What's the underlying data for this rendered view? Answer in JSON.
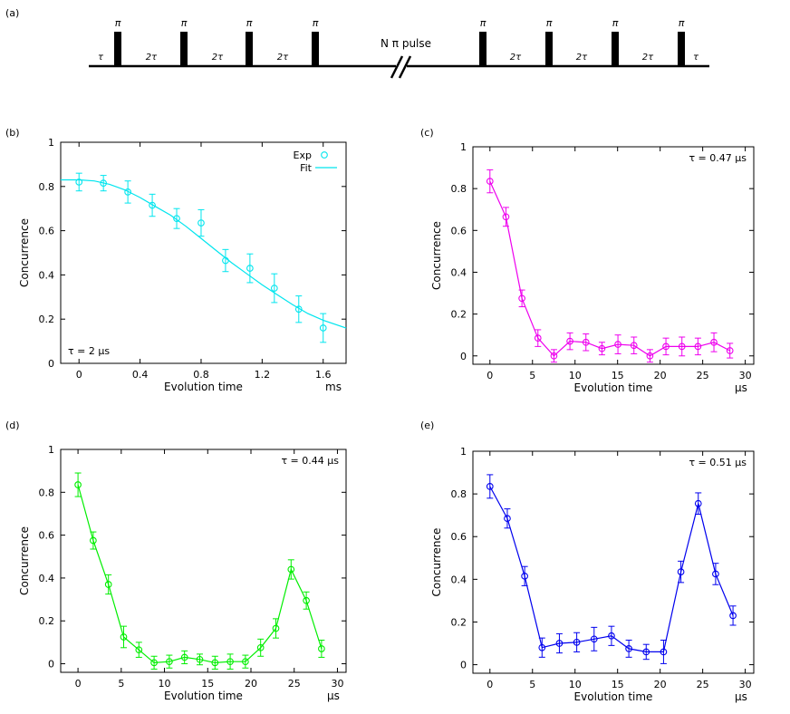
{
  "pulse_sequence": {
    "label": "(a)",
    "pi_label": "π",
    "tau_label": "τ",
    "two_tau_label": "2τ",
    "break_label": "N π pulse",
    "pulses_before_break": 4,
    "pulses_after_break": 4
  },
  "chart_data": [
    {
      "panel_label": "(b)",
      "type": "scatter",
      "series_type": "exp-with-fit",
      "color": "#00e5ee",
      "xlabel": "Evolution time",
      "xunit": "ms",
      "ylabel": "Concurrence",
      "xlim": [
        -0.12,
        1.75
      ],
      "ylim": [
        0,
        1
      ],
      "xticks": [
        0,
        0.4,
        0.8,
        1.2,
        1.6
      ],
      "xtick_labels": [
        "0",
        "0.4",
        "0.8",
        "1.2",
        "1.6"
      ],
      "yticks": [
        0,
        0.2,
        0.4,
        0.6,
        0.8,
        1
      ],
      "ytick_labels": [
        "0",
        "0.2",
        "0.4",
        "0.6",
        "0.8",
        "1"
      ],
      "annotation": "τ = 2 μs",
      "legend": [
        "Exp",
        "Fit"
      ],
      "legend_position": "top-right",
      "x": [
        0,
        0.16,
        0.32,
        0.48,
        0.64,
        0.8,
        0.96,
        1.12,
        1.28,
        1.44,
        1.6
      ],
      "y": [
        0.82,
        0.815,
        0.775,
        0.715,
        0.655,
        0.635,
        0.465,
        0.43,
        0.34,
        0.245,
        0.16
      ],
      "err": [
        0.04,
        0.035,
        0.05,
        0.05,
        0.045,
        0.06,
        0.05,
        0.065,
        0.065,
        0.06,
        0.065
      ],
      "fit": {
        "x": [
          -0.12,
          0,
          0.1,
          0.2,
          0.3,
          0.4,
          0.5,
          0.6,
          0.7,
          0.8,
          0.9,
          1.0,
          1.1,
          1.2,
          1.3,
          1.4,
          1.5,
          1.6,
          1.75
        ],
        "y": [
          0.83,
          0.83,
          0.825,
          0.81,
          0.785,
          0.75,
          0.71,
          0.67,
          0.62,
          0.565,
          0.51,
          0.455,
          0.405,
          0.355,
          0.31,
          0.265,
          0.225,
          0.195,
          0.16
        ]
      }
    },
    {
      "panel_label": "(c)",
      "type": "line",
      "color": "#ee00ee",
      "xlabel": "Evolution time",
      "xunit": "μs",
      "ylabel": "Concurrence",
      "xlim": [
        -2,
        31
      ],
      "ylim": [
        -0.04,
        1
      ],
      "xticks": [
        0,
        5,
        10,
        15,
        20,
        25,
        30
      ],
      "xtick_labels": [
        "0",
        "5",
        "10",
        "15",
        "20",
        "25",
        "30"
      ],
      "yticks": [
        0,
        0.2,
        0.4,
        0.6,
        0.8,
        1
      ],
      "ytick_labels": [
        "0",
        "0.2",
        "0.4",
        "0.6",
        "0.8",
        "1"
      ],
      "annotation": "τ = 0.47 μs",
      "x": [
        0,
        1.88,
        3.76,
        5.64,
        7.52,
        9.4,
        11.28,
        13.16,
        15.04,
        16.92,
        18.8,
        20.68,
        22.56,
        24.44,
        26.32,
        28.2
      ],
      "y": [
        0.835,
        0.665,
        0.275,
        0.085,
        0.0,
        0.07,
        0.065,
        0.035,
        0.055,
        0.05,
        0.0,
        0.045,
        0.045,
        0.045,
        0.065,
        0.025
      ],
      "err": [
        0.055,
        0.045,
        0.04,
        0.04,
        0.03,
        0.04,
        0.04,
        0.03,
        0.045,
        0.04,
        0.03,
        0.04,
        0.045,
        0.04,
        0.045,
        0.035
      ]
    },
    {
      "panel_label": "(d)",
      "type": "line",
      "color": "#00ee00",
      "xlabel": "Evolution time",
      "xunit": "μs",
      "ylabel": "Concurrence",
      "xlim": [
        -2,
        31
      ],
      "ylim": [
        -0.04,
        1
      ],
      "xticks": [
        0,
        5,
        10,
        15,
        20,
        25,
        30
      ],
      "xtick_labels": [
        "0",
        "5",
        "10",
        "15",
        "20",
        "25",
        "30"
      ],
      "yticks": [
        0,
        0.2,
        0.4,
        0.6,
        0.8,
        1
      ],
      "ytick_labels": [
        "0",
        "0.2",
        "0.4",
        "0.6",
        "0.8",
        "1"
      ],
      "annotation": "τ = 0.44 μs",
      "x": [
        0,
        1.76,
        3.52,
        5.28,
        7.04,
        8.8,
        10.56,
        12.32,
        14.08,
        15.84,
        17.6,
        19.36,
        21.12,
        22.88,
        24.64,
        26.4,
        28.16
      ],
      "y": [
        0.835,
        0.575,
        0.37,
        0.125,
        0.065,
        0.005,
        0.01,
        0.03,
        0.02,
        0.005,
        0.01,
        0.01,
        0.075,
        0.165,
        0.44,
        0.295,
        0.07
      ],
      "err": [
        0.055,
        0.04,
        0.045,
        0.05,
        0.035,
        0.03,
        0.03,
        0.03,
        0.025,
        0.03,
        0.035,
        0.03,
        0.04,
        0.045,
        0.045,
        0.04,
        0.04
      ]
    },
    {
      "panel_label": "(e)",
      "type": "line",
      "color": "#0000ee",
      "xlabel": "Evolution time",
      "xunit": "μs",
      "ylabel": "Concurrence",
      "xlim": [
        -2,
        31
      ],
      "ylim": [
        -0.04,
        1
      ],
      "xticks": [
        0,
        5,
        10,
        15,
        20,
        25,
        30
      ],
      "xtick_labels": [
        "0",
        "5",
        "10",
        "15",
        "20",
        "25",
        "30"
      ],
      "yticks": [
        0,
        0.2,
        0.4,
        0.6,
        0.8,
        1
      ],
      "ytick_labels": [
        "0",
        "0.2",
        "0.4",
        "0.6",
        "0.8",
        "1"
      ],
      "annotation": "τ = 0.51 μs",
      "x": [
        0,
        2.04,
        4.08,
        6.12,
        8.16,
        10.2,
        12.24,
        14.28,
        16.32,
        18.36,
        20.4,
        22.44,
        24.48,
        26.52,
        28.56
      ],
      "y": [
        0.835,
        0.685,
        0.415,
        0.08,
        0.1,
        0.105,
        0.12,
        0.135,
        0.075,
        0.06,
        0.06,
        0.435,
        0.755,
        0.425,
        0.23
      ],
      "err": [
        0.055,
        0.045,
        0.045,
        0.045,
        0.045,
        0.045,
        0.055,
        0.045,
        0.04,
        0.035,
        0.055,
        0.05,
        0.05,
        0.05,
        0.045
      ]
    }
  ]
}
